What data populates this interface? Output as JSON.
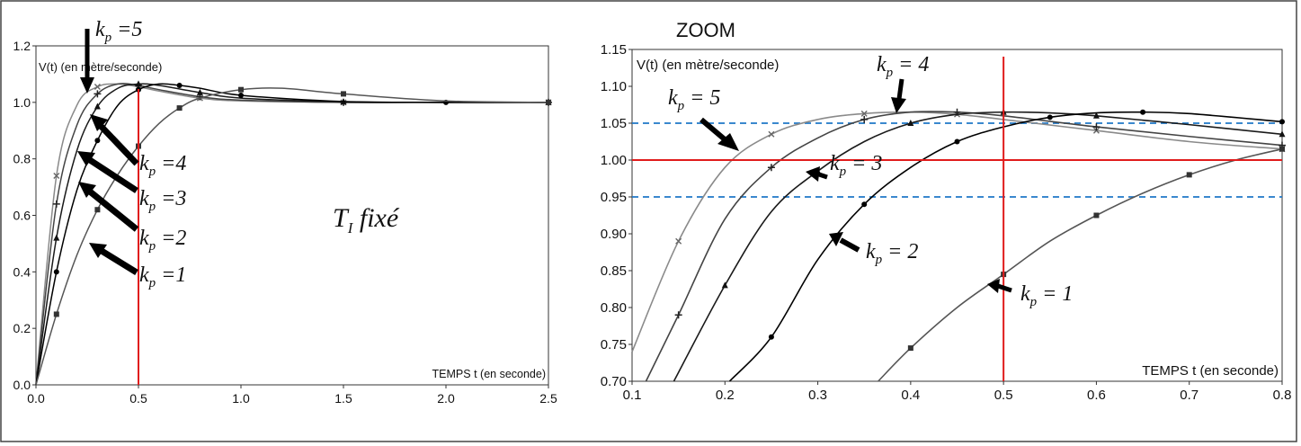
{
  "chart_data": [
    {
      "type": "line",
      "ylabel": "V(t) (en mètre/seconde)",
      "xlabel": "TEMPS t (en seconde)",
      "xlim": [
        0,
        2.5
      ],
      "ylim": [
        0,
        1.2
      ],
      "xticks": [
        "0.0",
        "0.5",
        "1.0",
        "1.5",
        "2.0",
        "2.5"
      ],
      "yticks": [
        "0.0",
        "0.2",
        "0.4",
        "0.6",
        "0.8",
        "1.0",
        "1.2"
      ],
      "grid": false,
      "vertical_line_x": 0.5,
      "vertical_line_color": "#e01b1b",
      "caption": "T",
      "caption_sub": "I",
      "caption_rest": " fixé",
      "series": [
        {
          "name": "k_p = 5",
          "kp_label": "k",
          "kp_sub": "p",
          "kp_value": " =5",
          "x": [
            0,
            0.1,
            0.2,
            0.3,
            0.4,
            0.5,
            0.6,
            0.8,
            1.0,
            1.5,
            2.0,
            2.5
          ],
          "y": [
            0,
            0.74,
            0.99,
            1.055,
            1.065,
            1.055,
            1.04,
            1.015,
            1.005,
            1.0,
            1.0,
            1.0
          ]
        },
        {
          "name": "k_p = 4",
          "kp_label": "k",
          "kp_sub": "p",
          "kp_value": " =4",
          "x": [
            0,
            0.1,
            0.2,
            0.3,
            0.4,
            0.5,
            0.6,
            0.8,
            1.0,
            1.5,
            2.0,
            2.5
          ],
          "y": [
            0,
            0.64,
            0.92,
            1.03,
            1.065,
            1.06,
            1.045,
            1.02,
            1.008,
            1.0,
            1.0,
            1.0
          ]
        },
        {
          "name": "k_p = 3",
          "kp_label": "k",
          "kp_sub": "p",
          "kp_value": " =3",
          "x": [
            0,
            0.1,
            0.2,
            0.3,
            0.4,
            0.5,
            0.6,
            0.8,
            1.0,
            1.5,
            2.0,
            2.5
          ],
          "y": [
            0,
            0.52,
            0.83,
            0.985,
            1.05,
            1.065,
            1.06,
            1.035,
            1.015,
            1.002,
            1.0,
            1.0
          ]
        },
        {
          "name": "k_p = 2",
          "kp_label": "k",
          "kp_sub": "p",
          "kp_value": " =2",
          "x": [
            0,
            0.1,
            0.2,
            0.3,
            0.4,
            0.5,
            0.6,
            0.7,
            0.8,
            1.0,
            1.5,
            2.0,
            2.5
          ],
          "y": [
            0,
            0.4,
            0.69,
            0.865,
            0.99,
            1.045,
            1.065,
            1.06,
            1.05,
            1.025,
            1.003,
            1.0,
            1.0
          ]
        },
        {
          "name": "k_p = 1",
          "kp_label": "k",
          "kp_sub": "p",
          "kp_value": " =1",
          "x": [
            0,
            0.1,
            0.2,
            0.3,
            0.4,
            0.5,
            0.6,
            0.7,
            0.8,
            1.0,
            1.2,
            1.5,
            2.0,
            2.5
          ],
          "y": [
            0,
            0.25,
            0.46,
            0.62,
            0.745,
            0.845,
            0.925,
            0.98,
            1.015,
            1.045,
            1.05,
            1.03,
            1.005,
            1.0
          ]
        }
      ]
    },
    {
      "type": "line",
      "title": "ZOOM",
      "ylabel": "V(t) (en mètre/seconde)",
      "xlabel": "TEMPS t (en seconde)",
      "xlim": [
        0.1,
        0.8
      ],
      "ylim": [
        0.7,
        1.15
      ],
      "xticks": [
        "0.1",
        "0.2",
        "0.3",
        "0.4",
        "0.5",
        "0.6",
        "0.7",
        "0.8"
      ],
      "yticks": [
        "0.70",
        "0.75",
        "0.80",
        "0.85",
        "0.90",
        "0.95",
        "1.00",
        "1.05",
        "1.10",
        "1.15"
      ],
      "grid": false,
      "vertical_line_x": 0.5,
      "horizontal_line_y": 1.0,
      "dashed_lines_y": [
        1.05,
        0.95
      ],
      "red_color": "#e01b1b",
      "dashed_color": "#1f78c8",
      "series": [
        {
          "name": "k_p = 5",
          "kp_label": "k",
          "kp_sub": "p",
          "kp_value": " = 5",
          "x": [
            0.1,
            0.15,
            0.2,
            0.25,
            0.3,
            0.35,
            0.4,
            0.45,
            0.5,
            0.6,
            0.7,
            0.8
          ],
          "y": [
            0.74,
            0.89,
            0.99,
            1.035,
            1.055,
            1.063,
            1.065,
            1.062,
            1.055,
            1.04,
            1.025,
            1.015
          ]
        },
        {
          "name": "k_p = 4",
          "kp_label": "k",
          "kp_sub": "p",
          "kp_value": " = 4",
          "x": [
            0.115,
            0.15,
            0.2,
            0.25,
            0.3,
            0.35,
            0.4,
            0.45,
            0.5,
            0.6,
            0.7,
            0.8
          ],
          "y": [
            0.7,
            0.79,
            0.92,
            0.99,
            1.03,
            1.055,
            1.065,
            1.065,
            1.06,
            1.045,
            1.032,
            1.02
          ]
        },
        {
          "name": "k_p = 3",
          "kp_label": "k",
          "kp_sub": "p",
          "kp_value": " = 3",
          "x": [
            0.145,
            0.2,
            0.25,
            0.3,
            0.35,
            0.4,
            0.45,
            0.5,
            0.55,
            0.6,
            0.7,
            0.8
          ],
          "y": [
            0.7,
            0.83,
            0.93,
            0.985,
            1.025,
            1.05,
            1.062,
            1.065,
            1.064,
            1.06,
            1.048,
            1.035
          ]
        },
        {
          "name": "k_p = 2",
          "kp_label": "k",
          "kp_sub": "p",
          "kp_value": " = 2",
          "x": [
            0.205,
            0.25,
            0.3,
            0.35,
            0.4,
            0.45,
            0.5,
            0.55,
            0.6,
            0.65,
            0.7,
            0.8
          ],
          "y": [
            0.7,
            0.76,
            0.865,
            0.94,
            0.99,
            1.025,
            1.045,
            1.058,
            1.064,
            1.065,
            1.063,
            1.052
          ]
        },
        {
          "name": "k_p = 1",
          "kp_label": "k",
          "kp_sub": "p",
          "kp_value": " = 1",
          "x": [
            0.365,
            0.4,
            0.45,
            0.5,
            0.55,
            0.6,
            0.65,
            0.7,
            0.75,
            0.8
          ],
          "y": [
            0.7,
            0.745,
            0.8,
            0.845,
            0.89,
            0.925,
            0.955,
            0.98,
            1.0,
            1.015
          ]
        }
      ]
    }
  ]
}
